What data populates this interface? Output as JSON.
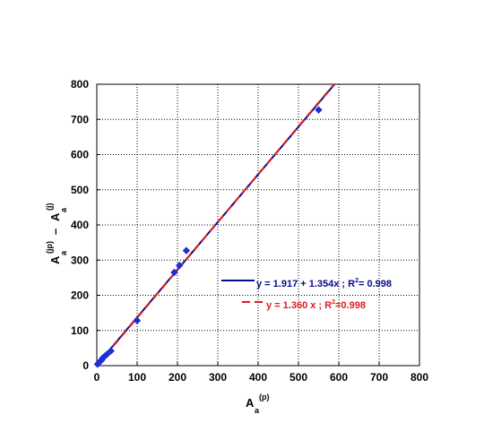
{
  "chart_data": {
    "type": "scatter",
    "xlim": [
      0,
      800
    ],
    "ylim": [
      0,
      800
    ],
    "xticks": [
      "0",
      "100",
      "200",
      "300",
      "400",
      "500",
      "600",
      "700",
      "800"
    ],
    "yticks": [
      "0",
      "100",
      "200",
      "300",
      "400",
      "500",
      "600",
      "700",
      "800"
    ],
    "grid": true,
    "xlabel": {
      "main": "A",
      "sub": "a",
      "sup": "(p)"
    },
    "ylabel": {
      "part1_main": "A",
      "part1_sub": "a",
      "part1_sup": "(jp)",
      "minus": "–",
      "part2_main": "A",
      "part2_sub": "a",
      "part2_sup": "(j)"
    },
    "points": [
      {
        "x": 2,
        "y": 4
      },
      {
        "x": 5,
        "y": 8
      },
      {
        "x": 8,
        "y": 12
      },
      {
        "x": 12,
        "y": 16
      },
      {
        "x": 15,
        "y": 22
      },
      {
        "x": 20,
        "y": 27
      },
      {
        "x": 25,
        "y": 32
      },
      {
        "x": 35,
        "y": 42
      },
      {
        "x": 100,
        "y": 128
      },
      {
        "x": 192,
        "y": 265
      },
      {
        "x": 205,
        "y": 285
      },
      {
        "x": 222,
        "y": 327
      },
      {
        "x": 550,
        "y": 727
      }
    ],
    "marker_color": "#1e2fd6",
    "fits": [
      {
        "intercept": 1.917,
        "slope": 1.354,
        "color": "#0a0a8a",
        "style": "solid",
        "label_parts": [
          "y = 1.917 + 1.354x   ; R",
          "2",
          "= 0.998"
        ]
      },
      {
        "intercept": 0,
        "slope": 1.36,
        "color": "#e01b1b",
        "style": "dashed",
        "label_parts": [
          "y =   1.360  x   ;  R",
          "2",
          "=0.998"
        ]
      }
    ],
    "legend_position": "right"
  }
}
